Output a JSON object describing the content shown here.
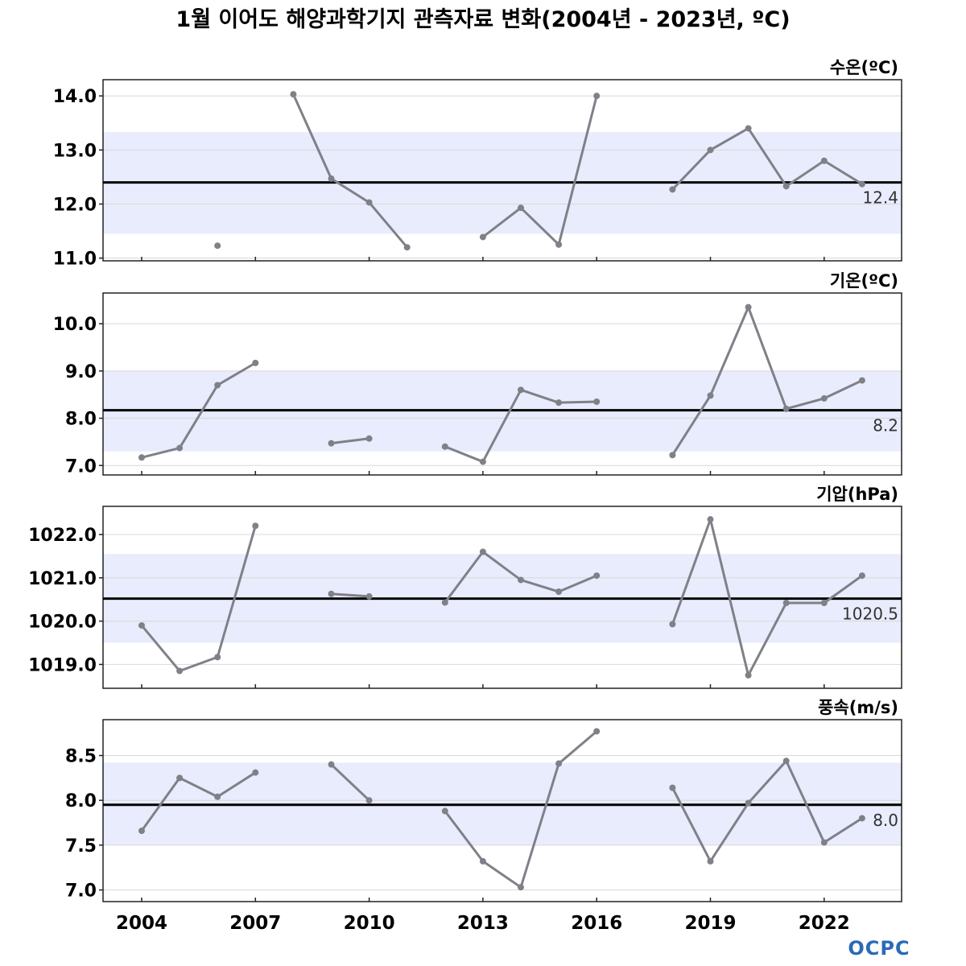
{
  "title": "1월 이어도 해양과학기지 관측자료 변화(2004년 - 2023년, ºC)",
  "logo": "OCPC",
  "colors": {
    "band": "#e8ecfc",
    "line": "#808088",
    "mean": "#000000",
    "grid": "#d8d8d8"
  },
  "chart_data": [
    {
      "type": "line",
      "label": "수온(ºC)",
      "ylim": [
        10.95,
        14.3
      ],
      "yticks": [
        11.0,
        12.0,
        13.0,
        14.0
      ],
      "yticklabels": [
        "11.0",
        "12.0",
        "13.0",
        "14.0"
      ],
      "x": [
        2004,
        2005,
        2006,
        2007,
        2008,
        2009,
        2010,
        2011,
        2012,
        2013,
        2014,
        2015,
        2016,
        2017,
        2018,
        2019,
        2020,
        2021,
        2022,
        2023
      ],
      "values": [
        null,
        null,
        11.23,
        null,
        14.03,
        12.47,
        12.03,
        11.2,
        null,
        11.39,
        11.93,
        11.25,
        14.0,
        null,
        12.27,
        13.0,
        13.4,
        12.33,
        12.8,
        12.37
      ],
      "mean": 12.4,
      "mean_label": "12.4",
      "band": [
        11.45,
        13.33
      ],
      "grid": true
    },
    {
      "type": "line",
      "label": "기온(ºC)",
      "ylim": [
        6.8,
        10.65
      ],
      "yticks": [
        7.0,
        8.0,
        9.0,
        10.0
      ],
      "yticklabels": [
        "7.0",
        "8.0",
        "9.0",
        "10.0"
      ],
      "x": [
        2004,
        2005,
        2006,
        2007,
        2008,
        2009,
        2010,
        2011,
        2012,
        2013,
        2014,
        2015,
        2016,
        2017,
        2018,
        2019,
        2020,
        2021,
        2022,
        2023
      ],
      "values": [
        7.17,
        7.37,
        8.7,
        9.17,
        null,
        7.47,
        7.57,
        null,
        7.4,
        7.08,
        8.6,
        8.33,
        8.35,
        null,
        7.22,
        8.48,
        10.35,
        8.2,
        8.42,
        8.8
      ],
      "mean": 8.17,
      "mean_label": "8.2",
      "band": [
        7.3,
        9.0
      ],
      "grid": true
    },
    {
      "type": "line",
      "label": "기압(hPa)",
      "ylim": [
        1018.45,
        1022.65
      ],
      "yticks": [
        1019.0,
        1020.0,
        1021.0,
        1022.0
      ],
      "yticklabels": [
        "1019.0",
        "1020.0",
        "1021.0",
        "1022.0"
      ],
      "x": [
        2004,
        2005,
        2006,
        2007,
        2008,
        2009,
        2010,
        2011,
        2012,
        2013,
        2014,
        2015,
        2016,
        2017,
        2018,
        2019,
        2020,
        2021,
        2022,
        2023
      ],
      "values": [
        1019.9,
        1018.85,
        1019.17,
        1022.2,
        null,
        1020.63,
        1020.57,
        null,
        1020.43,
        1021.6,
        1020.95,
        1020.68,
        1021.05,
        null,
        1019.93,
        1022.35,
        1018.75,
        1020.42,
        1020.42,
        1021.05
      ],
      "mean": 1020.52,
      "mean_label": "1020.5",
      "band": [
        1019.5,
        1021.55
      ],
      "grid": true
    },
    {
      "type": "line",
      "label": "풍속(m/s)",
      "xlabel": "",
      "ylim": [
        6.87,
        8.9
      ],
      "yticks": [
        7.0,
        7.5,
        8.0,
        8.5
      ],
      "yticklabels": [
        "7.0",
        "7.5",
        "8.0",
        "8.5"
      ],
      "xticks": [
        2004,
        2007,
        2010,
        2013,
        2016,
        2019,
        2022
      ],
      "xticklabels": [
        "2004",
        "2007",
        "2010",
        "2013",
        "2016",
        "2019",
        "2022"
      ],
      "x": [
        2004,
        2005,
        2006,
        2007,
        2008,
        2009,
        2010,
        2011,
        2012,
        2013,
        2014,
        2015,
        2016,
        2017,
        2018,
        2019,
        2020,
        2021,
        2022,
        2023
      ],
      "values": [
        7.66,
        8.25,
        8.04,
        8.31,
        null,
        8.4,
        8.0,
        null,
        7.88,
        7.32,
        7.03,
        8.41,
        8.77,
        null,
        8.14,
        7.32,
        7.97,
        8.44,
        7.53,
        7.8
      ],
      "mean": 7.95,
      "mean_label": "8.0",
      "band": [
        7.5,
        8.42
      ],
      "grid": true
    }
  ]
}
